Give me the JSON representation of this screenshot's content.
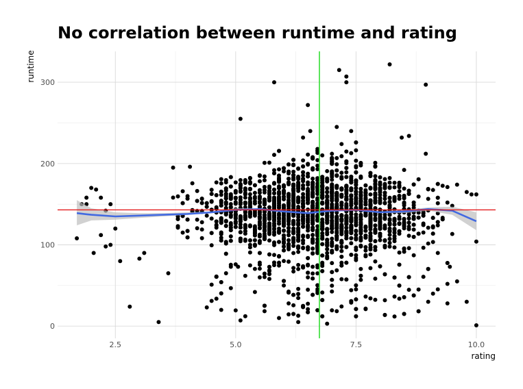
{
  "chart_data": {
    "type": "scatter",
    "title": "No correlation between runtime and rating",
    "xlabel": "rating",
    "ylabel": "runtime",
    "xlim": [
      1.3,
      10.4
    ],
    "ylim": [
      -15,
      338
    ],
    "x_ticks": [
      2.5,
      5.0,
      7.5,
      10.0
    ],
    "x_tick_labels": [
      "2.5",
      "5.0",
      "7.5",
      "10.0"
    ],
    "y_ticks": [
      0,
      100,
      200,
      300
    ],
    "y_tick_labels": [
      "0",
      "100",
      "200",
      "300"
    ],
    "grid": true,
    "reference_lines": {
      "horizontal_runtime": 143,
      "horizontal_color": "#e41a1c",
      "vertical_rating": 6.74,
      "vertical_color": "#33dd33"
    },
    "smooth": {
      "color": "#4169e1",
      "band_color": "#bdbdbd",
      "x": [
        1.7,
        2.0,
        2.5,
        3.0,
        3.5,
        4.0,
        4.5,
        5.0,
        5.5,
        6.0,
        6.5,
        7.0,
        7.5,
        8.0,
        8.5,
        9.0,
        9.5,
        10.0
      ],
      "y": [
        139,
        137,
        135,
        136,
        137,
        138,
        140,
        143,
        144,
        141,
        139,
        142,
        143,
        140,
        141,
        144,
        142,
        129
      ],
      "ymin": [
        124,
        130,
        131,
        133,
        135,
        137,
        139,
        142,
        143,
        140,
        138,
        141,
        142,
        139,
        139,
        142,
        137,
        118
      ],
      "ymax": [
        155,
        145,
        140,
        139,
        139,
        140,
        141,
        145,
        145,
        142,
        140,
        143,
        144,
        141,
        143,
        146,
        147,
        140
      ]
    },
    "points": [
      [
        1.7,
        108
      ],
      [
        1.8,
        150
      ],
      [
        1.9,
        158
      ],
      [
        1.9,
        150
      ],
      [
        2.0,
        170
      ],
      [
        2.05,
        90
      ],
      [
        2.1,
        168
      ],
      [
        2.2,
        112
      ],
      [
        2.2,
        158
      ],
      [
        2.3,
        98
      ],
      [
        2.3,
        142
      ],
      [
        2.4,
        100
      ],
      [
        2.4,
        150
      ],
      [
        2.5,
        120
      ],
      [
        2.6,
        80
      ],
      [
        2.8,
        24
      ],
      [
        3.4,
        5
      ],
      [
        3.6,
        65
      ],
      [
        4.4,
        23
      ],
      [
        4.5,
        31
      ],
      [
        4.7,
        20
      ],
      [
        5.05,
        73
      ],
      [
        5.1,
        255
      ],
      [
        5.8,
        300
      ],
      [
        5.9,
        120
      ],
      [
        6.5,
        272
      ],
      [
        6.55,
        240
      ],
      [
        7.15,
        315
      ],
      [
        7.3,
        307
      ],
      [
        7.3,
        300
      ],
      [
        8.2,
        322
      ],
      [
        8.95,
        297
      ],
      [
        9.45,
        73
      ],
      [
        9.8,
        30
      ],
      [
        10.0,
        1
      ],
      [
        10.0,
        104
      ],
      [
        10.0,
        162
      ],
      [
        9.9,
        162
      ],
      [
        9.8,
        165
      ],
      [
        9.6,
        174
      ],
      [
        9.5,
        148
      ],
      [
        9.2,
        90
      ],
      [
        7.1,
        245
      ],
      [
        7.4,
        240
      ],
      [
        7.2,
        224
      ],
      [
        6.4,
        232
      ],
      [
        8.6,
        234
      ],
      [
        8.45,
        232
      ],
      [
        8.95,
        212
      ],
      [
        4.05,
        196
      ],
      [
        3.7,
        195
      ],
      [
        5.1,
        7
      ],
      [
        5.9,
        10
      ],
      [
        6.3,
        5
      ],
      [
        6.9,
        3
      ],
      [
        9.4,
        28
      ],
      [
        9.6,
        55
      ],
      [
        9.4,
        52
      ],
      [
        9.1,
        40
      ],
      [
        9.0,
        30
      ],
      [
        8.8,
        45
      ],
      [
        5.6,
        25
      ],
      [
        5.8,
        75
      ],
      [
        6.0,
        50
      ],
      [
        5.5,
        60
      ],
      [
        3.0,
        83
      ],
      [
        3.1,
        90
      ],
      [
        4.8,
        65
      ]
    ]
  }
}
